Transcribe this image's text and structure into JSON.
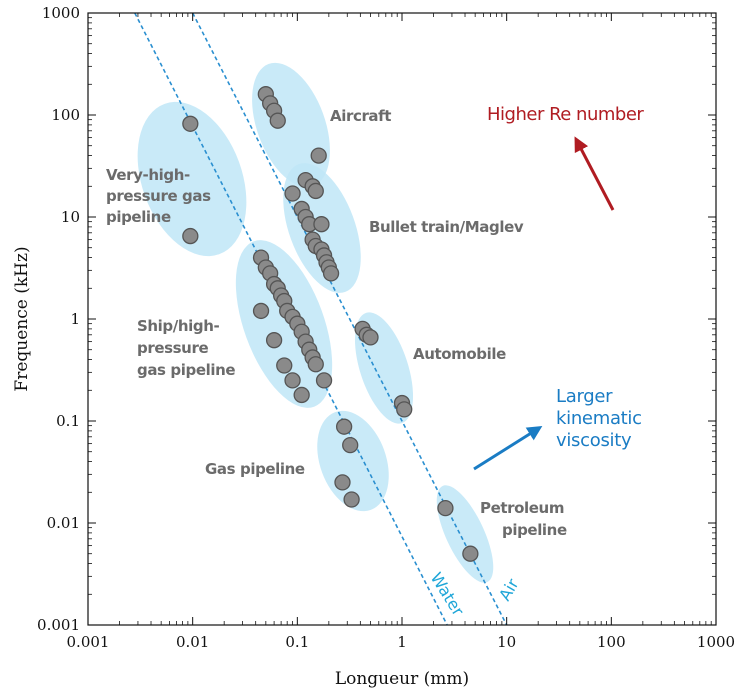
{
  "chart_data": {
    "type": "scatter",
    "title": "",
    "xlabel": "Longueur (mm)",
    "ylabel": "Frequence (kHz)",
    "xscale": "log",
    "yscale": "log",
    "xlim": [
      0.001,
      1000
    ],
    "ylim": [
      0.001,
      1000
    ],
    "x_ticks": [
      "0.001",
      "0.01",
      "0.1",
      "1",
      "10",
      "100",
      "1000"
    ],
    "y_ticks": [
      "0.001",
      "0.01",
      "0.1",
      "1",
      "10",
      "100",
      "1000"
    ],
    "grid": false,
    "colors": {
      "point_fill": "#8a8a8a",
      "point_stroke": "#555555",
      "region_fill": "#bfe6f7",
      "line": "#2a8fd0",
      "red_note": "#b01c22",
      "blue_note": "#1a7cc4"
    },
    "reference_lines": [
      {
        "name": "Water",
        "points": [
          [
            0.0028,
            1000
          ],
          [
            2.7,
            0.001
          ]
        ]
      },
      {
        "name": "Air",
        "points": [
          [
            0.01,
            1000
          ],
          [
            10,
            0.001
          ]
        ]
      }
    ],
    "groups": [
      {
        "name": "Aircraft",
        "label_lines": [
          "Aircraft"
        ],
        "points": [
          [
            0.05,
            160
          ],
          [
            0.055,
            130
          ],
          [
            0.06,
            110
          ],
          [
            0.065,
            88
          ],
          [
            0.16,
            40
          ]
        ]
      },
      {
        "name": "Very-high-pressure gas pipeline",
        "label_lines": [
          "Very-high-",
          "pressure gas",
          "pipeline"
        ],
        "points": [
          [
            0.0095,
            82
          ],
          [
            0.0095,
            6.5
          ]
        ]
      },
      {
        "name": "Bullet train/Maglev",
        "label_lines": [
          "Bullet train/Maglev"
        ],
        "points": [
          [
            0.09,
            17
          ],
          [
            0.12,
            23
          ],
          [
            0.14,
            20
          ],
          [
            0.15,
            18
          ],
          [
            0.11,
            12
          ],
          [
            0.12,
            10
          ],
          [
            0.13,
            8.5
          ],
          [
            0.17,
            8.5
          ],
          [
            0.14,
            6
          ],
          [
            0.15,
            5.2
          ],
          [
            0.17,
            4.8
          ],
          [
            0.18,
            4.2
          ],
          [
            0.19,
            3.6
          ],
          [
            0.2,
            3.2
          ],
          [
            0.21,
            2.8
          ]
        ]
      },
      {
        "name": "Ship/high-pressure gas pipeline",
        "label_lines": [
          "Ship/high-",
          "pressure",
          "gas pipeline"
        ],
        "points": [
          [
            0.045,
            4.0
          ],
          [
            0.05,
            3.2
          ],
          [
            0.055,
            2.8
          ],
          [
            0.06,
            2.2
          ],
          [
            0.065,
            2.0
          ],
          [
            0.07,
            1.7
          ],
          [
            0.075,
            1.5
          ],
          [
            0.08,
            1.2
          ],
          [
            0.09,
            1.05
          ],
          [
            0.1,
            0.9
          ],
          [
            0.11,
            0.75
          ],
          [
            0.12,
            0.6
          ],
          [
            0.13,
            0.5
          ],
          [
            0.14,
            0.42
          ],
          [
            0.15,
            0.36
          ],
          [
            0.045,
            1.2
          ],
          [
            0.06,
            0.62
          ],
          [
            0.075,
            0.35
          ],
          [
            0.09,
            0.25
          ],
          [
            0.11,
            0.18
          ],
          [
            0.18,
            0.25
          ]
        ]
      },
      {
        "name": "Automobile",
        "label_lines": [
          "Automobile"
        ],
        "points": [
          [
            0.42,
            0.8
          ],
          [
            0.46,
            0.7
          ],
          [
            0.5,
            0.66
          ],
          [
            1.0,
            0.15
          ],
          [
            1.05,
            0.13
          ]
        ]
      },
      {
        "name": "Gas pipeline",
        "label_lines": [
          "Gas pipeline"
        ],
        "points": [
          [
            0.28,
            0.088
          ],
          [
            0.32,
            0.058
          ],
          [
            0.27,
            0.025
          ],
          [
            0.33,
            0.017
          ]
        ]
      },
      {
        "name": "Petroleum pipeline",
        "label_lines": [
          "Petroleum",
          "pipeline"
        ],
        "points": [
          [
            2.6,
            0.014
          ],
          [
            4.5,
            0.005
          ]
        ]
      }
    ],
    "annotations": [
      {
        "text_lines": [
          "Higher Re number"
        ],
        "arrow": "up-left",
        "color": "red"
      },
      {
        "text_lines": [
          "Larger",
          "kinematic",
          "viscosity"
        ],
        "arrow": "up-right",
        "color": "blue"
      }
    ]
  }
}
